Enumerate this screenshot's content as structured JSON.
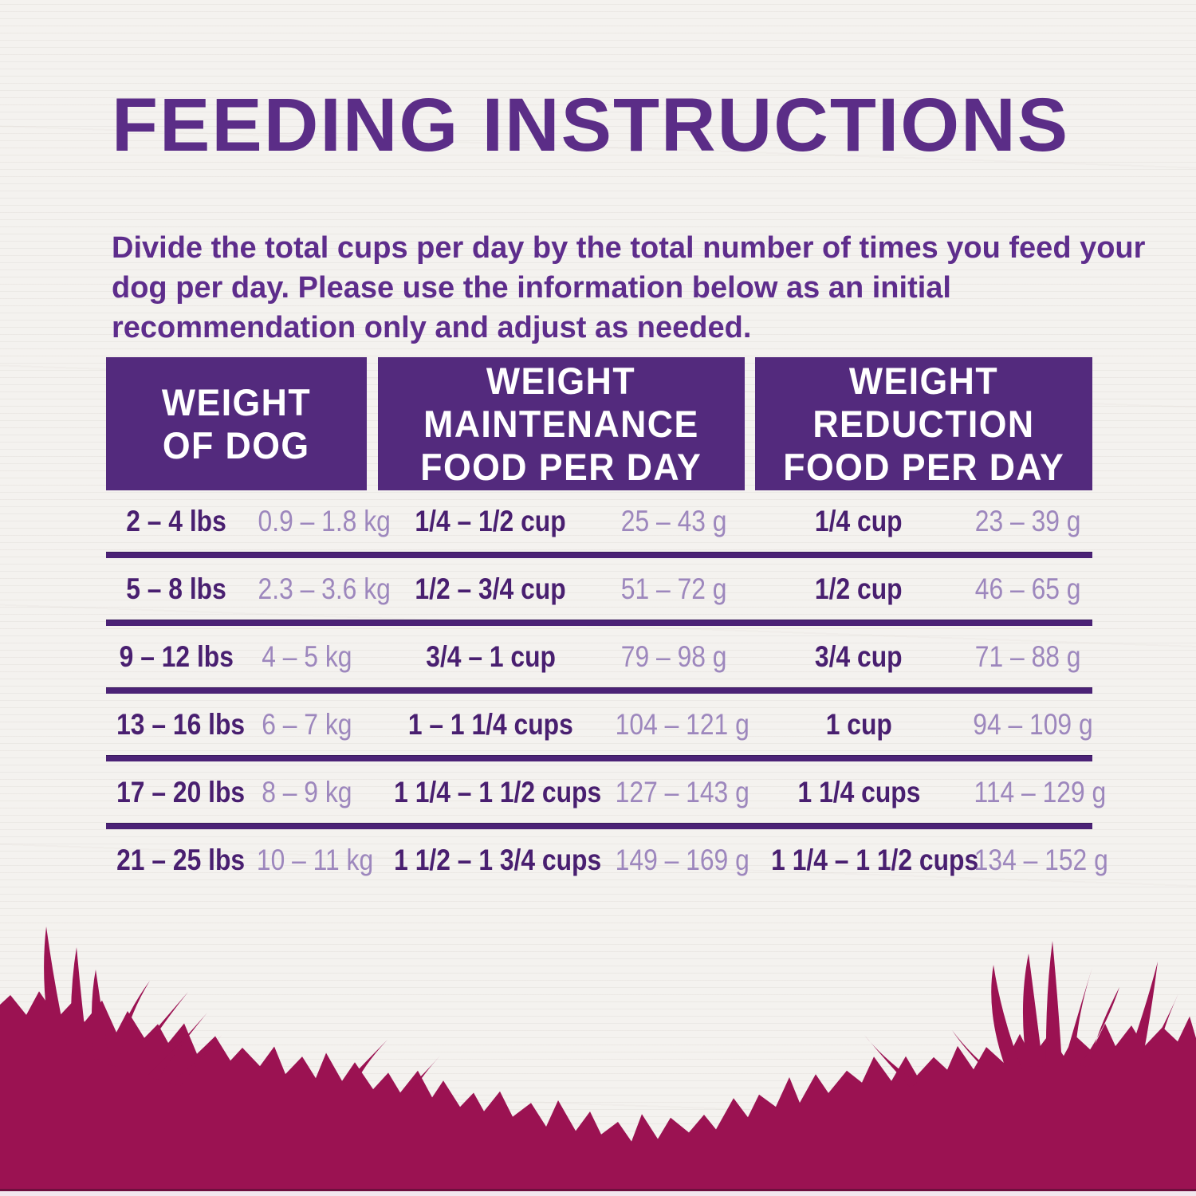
{
  "page": {
    "title": "FEEDING INSTRUCTIONS",
    "intro": "Divide the total cups per day by the total number of times you feed your dog per day. Please use the information below as an initial recommendation only and adjust as needed."
  },
  "table": {
    "headers": [
      {
        "lines": [
          "WEIGHT",
          "OF DOG"
        ]
      },
      {
        "lines": [
          "WEIGHT",
          "MAINTENANCE",
          "FOOD PER DAY"
        ]
      },
      {
        "lines": [
          "WEIGHT",
          "REDUCTION",
          "FOOD PER DAY"
        ]
      }
    ],
    "rows": [
      {
        "weight_lbs": "2 – 4 lbs",
        "weight_kg": "0.9 – 1.8 kg",
        "maintenance_cups": "1/4 – 1/2 cup",
        "maintenance_grams": "25 – 43 g",
        "reduction_cups": "1/4 cup",
        "reduction_grams": "23 – 39 g"
      },
      {
        "weight_lbs": "5 – 8 lbs",
        "weight_kg": "2.3 – 3.6 kg",
        "maintenance_cups": "1/2 – 3/4 cup",
        "maintenance_grams": "51 – 72 g",
        "reduction_cups": "1/2 cup",
        "reduction_grams": "46 – 65 g"
      },
      {
        "weight_lbs": "9 – 12 lbs",
        "weight_kg": "4 – 5 kg",
        "maintenance_cups": "3/4 – 1 cup",
        "maintenance_grams": "79 – 98 g",
        "reduction_cups": "3/4 cup",
        "reduction_grams": "71 – 88 g"
      },
      {
        "weight_lbs": "13 – 16 lbs",
        "weight_kg": "6 – 7 kg",
        "maintenance_cups": "1 – 1 1/4 cups",
        "maintenance_grams": "104 – 121 g",
        "reduction_cups": "1 cup",
        "reduction_grams": "94 – 109 g"
      },
      {
        "weight_lbs": "17 – 20 lbs",
        "weight_kg": "8 – 9 kg",
        "maintenance_cups": "1 1/4 – 1 1/2 cups",
        "maintenance_grams": "127 – 143 g",
        "reduction_cups": "1 1/4 cups",
        "reduction_grams": "114 – 129 g"
      },
      {
        "weight_lbs": "21 – 25 lbs",
        "weight_kg": "10 – 11 kg",
        "maintenance_cups": "1 1/2 – 1 3/4 cups",
        "maintenance_grams": "149 – 169 g",
        "reduction_cups": "1 1/4 – 1 1/2 cups",
        "reduction_grams": "134 – 152 g"
      }
    ]
  },
  "colors": {
    "title_purple": "#5b2d87",
    "intro_purple": "#5e2d8c",
    "header_bg": "#532a7d",
    "header_text": "#ffffff",
    "dark_text": "#491f70",
    "light_text": "#9d87bd",
    "divider": "#4b2276",
    "background": "#f4f2ef",
    "berry": "#9b1252",
    "berry_dark_line": "#6e0f3e",
    "bottom_strip": "#f2e7ee"
  }
}
